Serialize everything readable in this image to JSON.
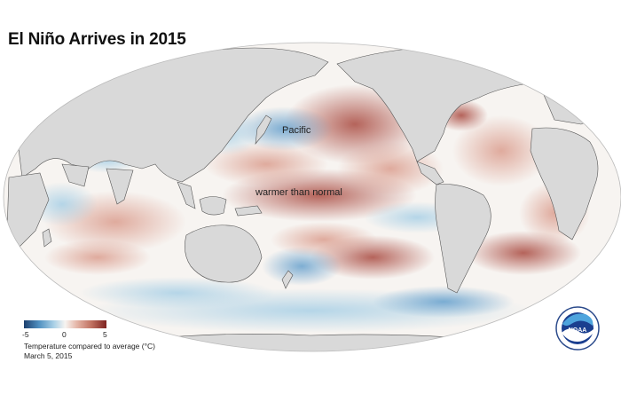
{
  "title": "El Niño Arrives in 2015",
  "map": {
    "projection": "Mollweide",
    "ocean_labels": {
      "pacific": "Pacific",
      "warmer": "warmer than normal"
    },
    "colors": {
      "land": "#d9d9d9",
      "coast": "#555555",
      "neutral": "#f7f4f1",
      "warm": "#a94a40",
      "warm_light": "#e5b6a8",
      "cool": "#4f8fc0",
      "cool_light": "#a9d0e6",
      "cool_dark": "#1c3f6e"
    }
  },
  "legend": {
    "ticks": [
      "-5",
      "0",
      "5"
    ],
    "caption": "Temperature compared to average (°C)",
    "date": "March 5, 2015"
  },
  "logo": {
    "text": "NOAA",
    "icon": "noaa-logo-icon"
  }
}
